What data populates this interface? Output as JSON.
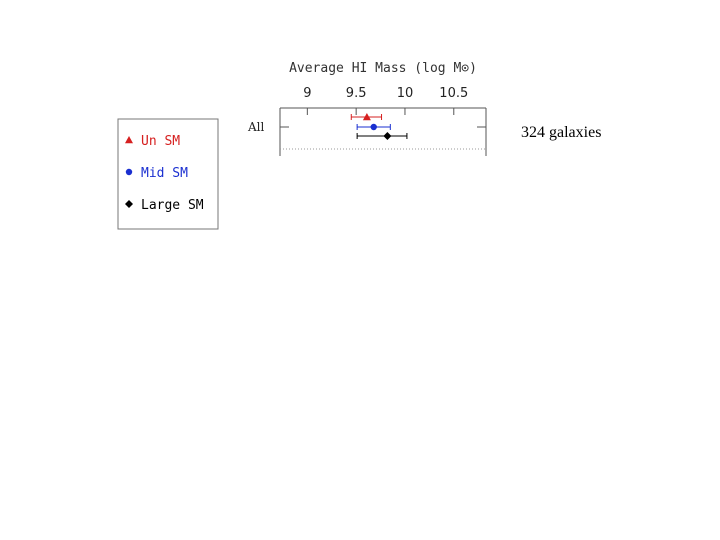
{
  "chart_data": {
    "type": "scatter",
    "title": "",
    "xlabel": "Average HI Mass (log M⊙)",
    "ylabel": "",
    "xlim": [
      8.72,
      10.83
    ],
    "x_ticks": [
      9,
      9.5,
      10,
      10.5
    ],
    "x_tick_labels": [
      "9",
      "9.5",
      "10",
      "10.5"
    ],
    "categories": [
      "All"
    ],
    "grid": false,
    "legend_position": "left",
    "series": [
      {
        "name": "Un SM",
        "marker": "triangle",
        "color": "#d62020",
        "values": [
          9.61
        ],
        "err_low": [
          9.45
        ],
        "err_high": [
          9.76
        ]
      },
      {
        "name": "Mid SM",
        "marker": "circle",
        "color": "#1a2fd0",
        "values": [
          9.68
        ],
        "err_low": [
          9.51
        ],
        "err_high": [
          9.85
        ]
      },
      {
        "name": "Large SM",
        "marker": "diamond",
        "color": "#000000",
        "values": [
          9.82
        ],
        "err_low": [
          9.51
        ],
        "err_high": [
          10.02
        ]
      }
    ]
  },
  "annotation": {
    "text": "324 galaxies"
  }
}
